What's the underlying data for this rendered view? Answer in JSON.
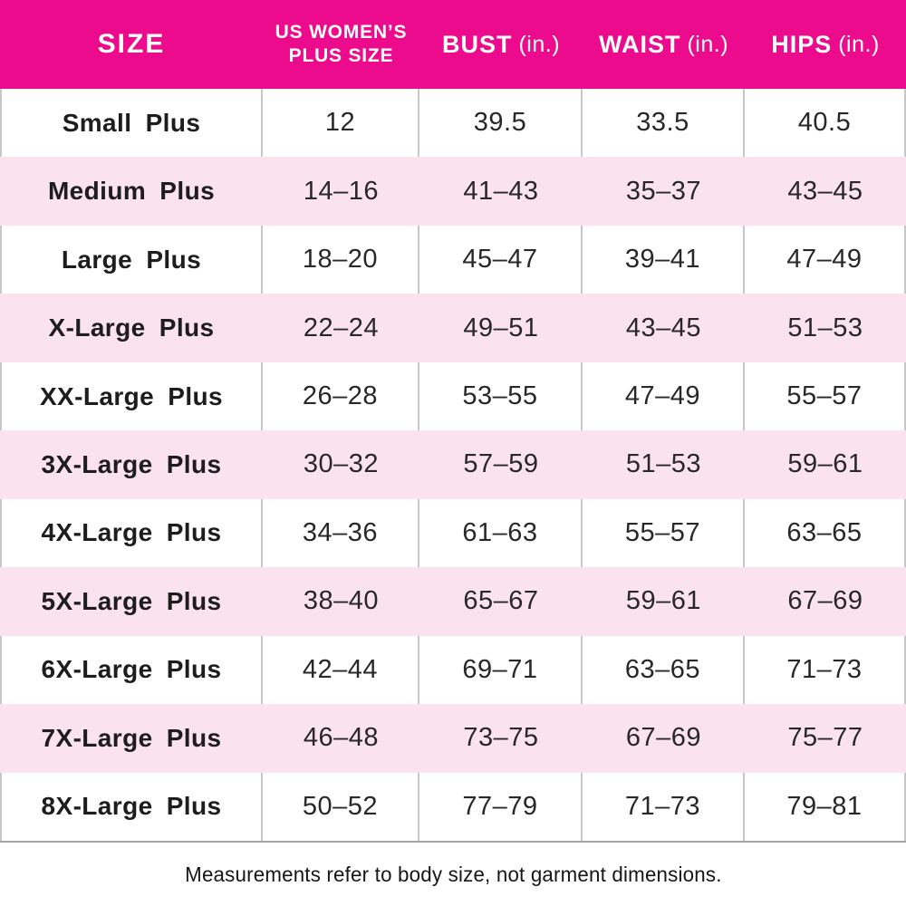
{
  "chart_data": {
    "type": "table",
    "columns": [
      {
        "label": "SIZE"
      },
      {
        "label": "US WOMEN’S",
        "label2": "PLUS SIZE"
      },
      {
        "label": "BUST",
        "unit": "(in.)"
      },
      {
        "label": "WAIST",
        "unit": "(in.)"
      },
      {
        "label": "HIPS",
        "unit": "(in.)"
      }
    ],
    "rows": [
      [
        "Small Plus",
        "12",
        "39.5",
        "33.5",
        "40.5"
      ],
      [
        "Medium Plus",
        "14–16",
        "41–43",
        "35–37",
        "43–45"
      ],
      [
        "Large Plus",
        "18–20",
        "45–47",
        "39–41",
        "47–49"
      ],
      [
        "X-Large Plus",
        "22–24",
        "49–51",
        "43–45",
        "51–53"
      ],
      [
        "XX-Large Plus",
        "26–28",
        "53–55",
        "47–49",
        "55–57"
      ],
      [
        "3X-Large Plus",
        "30–32",
        "57–59",
        "51–53",
        "59–61"
      ],
      [
        "4X-Large Plus",
        "34–36",
        "61–63",
        "55–57",
        "63–65"
      ],
      [
        "5X-Large Plus",
        "38–40",
        "65–67",
        "59–61",
        "67–69"
      ],
      [
        "6X-Large Plus",
        "42–44",
        "69–71",
        "63–65",
        "71–73"
      ],
      [
        "7X-Large Plus",
        "46–48",
        "73–75",
        "67–69",
        "75–77"
      ],
      [
        "8X-Large Plus",
        "50–52",
        "77–79",
        "71–73",
        "79–81"
      ]
    ],
    "layout": {
      "row_striping": "alternating white and pink starting with white",
      "grid_lines": "vertical gray separators visible on white rows only",
      "legend": "none"
    }
  },
  "footer": {
    "note": "Measurements refer to body size, not garment dimensions."
  },
  "colors": {
    "header_bg": "#EB0B8C",
    "header_text": "#FFFFFF",
    "row_stripe_pink": "#FAE2EF",
    "row_white": "#FFFFFF",
    "grid_line": "#C7C7C7",
    "table_bottom_border": "#A6A6A6",
    "body_text": "#282828"
  }
}
